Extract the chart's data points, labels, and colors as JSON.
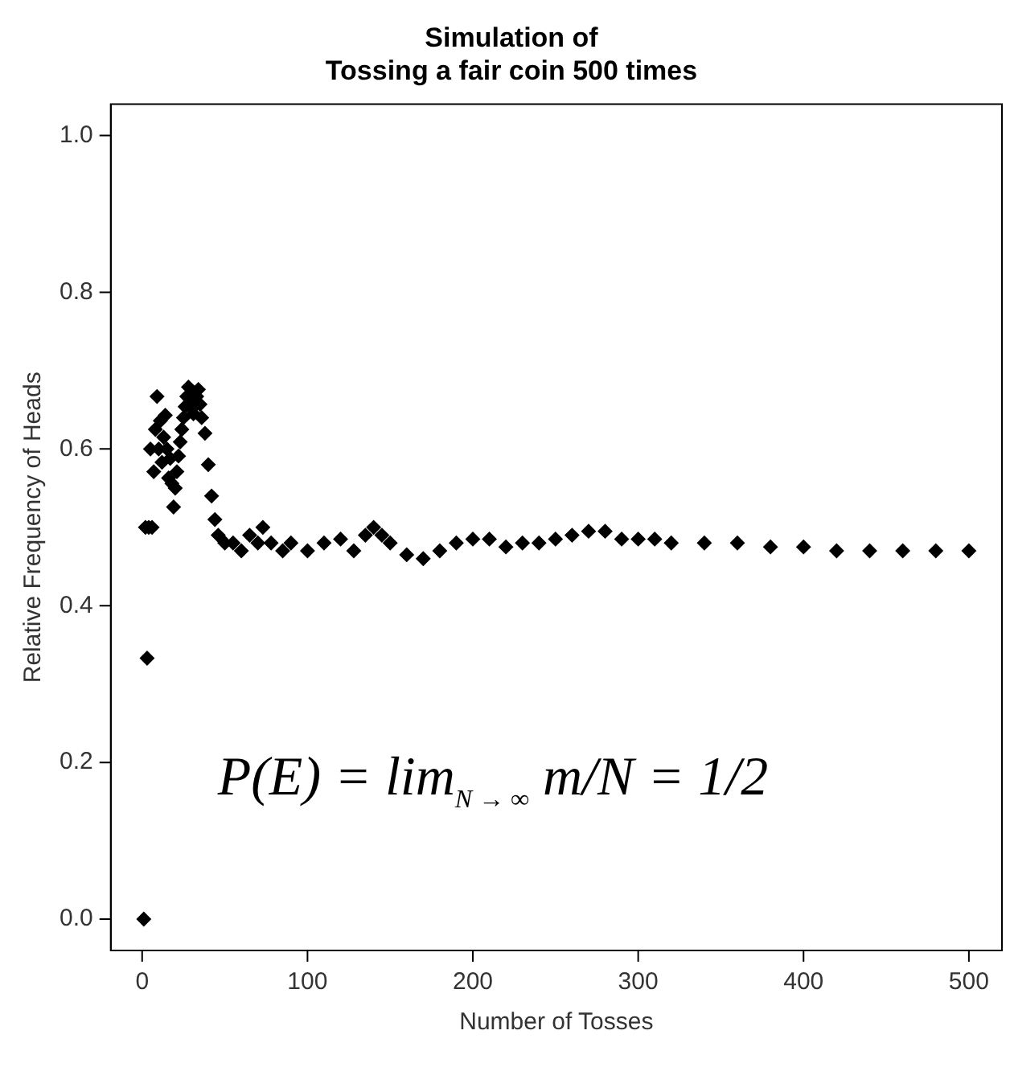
{
  "chart_data": {
    "type": "scatter",
    "title": "Simulation of\nTossing a fair coin 500 times",
    "xlabel": "Number of Tosses",
    "ylabel": "Relative Frequency of Heads",
    "annotations": [
      "P(E) = lim$_{N → ∞}$ m/N = 1/2"
    ],
    "x": [
      1,
      2,
      3,
      4,
      5,
      6,
      7,
      8,
      9,
      10,
      11,
      12,
      13,
      14,
      15,
      16,
      17,
      18,
      19,
      20,
      21,
      22,
      23,
      24,
      25,
      26,
      27,
      28,
      29,
      30,
      31,
      32,
      33,
      34,
      35,
      36,
      38,
      40,
      42,
      44,
      46,
      50,
      55,
      60,
      65,
      70,
      73,
      78,
      85,
      90,
      100,
      110,
      120,
      128,
      135,
      140,
      145,
      150,
      160,
      170,
      180,
      190,
      200,
      210,
      220,
      230,
      240,
      250,
      260,
      270,
      280,
      290,
      300,
      310,
      320,
      340,
      360,
      380,
      400,
      420,
      440,
      460,
      480,
      500
    ],
    "series": [
      {
        "color": "#000000",
        "values": [
          0,
          0.5,
          0.333,
          0.5,
          0.6,
          0.5,
          0.571,
          0.625,
          0.667,
          0.6,
          0.636,
          0.583,
          0.615,
          0.643,
          0.6,
          0.563,
          0.588,
          0.556,
          0.526,
          0.55,
          0.571,
          0.591,
          0.609,
          0.625,
          0.64,
          0.654,
          0.667,
          0.679,
          0.655,
          0.667,
          0.645,
          0.656,
          0.667,
          0.676,
          0.657,
          0.64,
          0.62,
          0.58,
          0.54,
          0.51,
          0.49,
          0.48,
          0.48,
          0.47,
          0.49,
          0.48,
          0.5,
          0.48,
          0.47,
          0.48,
          0.47,
          0.48,
          0.485,
          0.47,
          0.49,
          0.5,
          0.49,
          0.48,
          0.465,
          0.46,
          0.47,
          0.48,
          0.485,
          0.485,
          0.475,
          0.48,
          0.48,
          0.485,
          0.49,
          0.495,
          0.495,
          0.485,
          0.485,
          0.485,
          0.48,
          0.48,
          0.48,
          0.475,
          0.475,
          0.47,
          0.47,
          0.47,
          0.47,
          0.47
        ]
      }
    ],
    "xlim": [
      -19,
      520
    ],
    "ylim": [
      -0.04,
      1.04
    ],
    "xticks": [
      0,
      100,
      200,
      300,
      400,
      500
    ],
    "yticks": [
      {
        "value": 0,
        "label": "0.0"
      },
      {
        "value": 0.2,
        "label": "0.2"
      },
      {
        "value": 0.4,
        "label": "0.4"
      },
      {
        "value": 0.6,
        "label": "0.6"
      },
      {
        "value": 0.8,
        "label": "0.8"
      },
      {
        "value": 1,
        "label": "1.0"
      }
    ],
    "grid": false,
    "legend": false,
    "marker": "diamond"
  }
}
